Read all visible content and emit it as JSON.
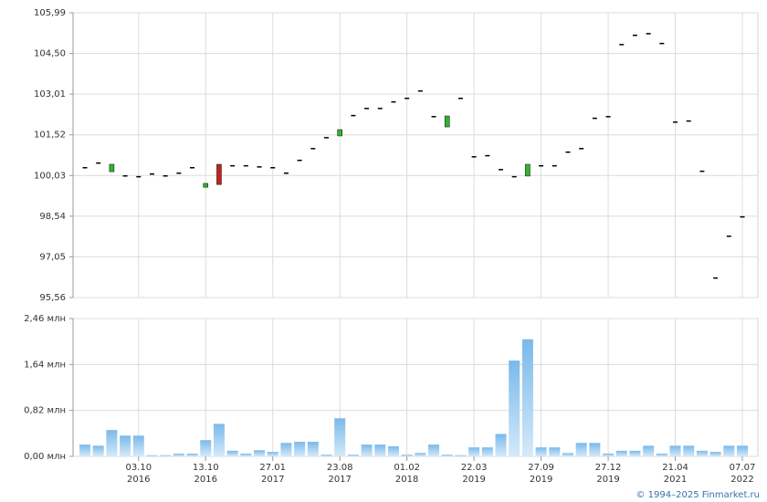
{
  "chart_data": [
    {
      "type": "candlestick",
      "up_color": "#2fb52f",
      "down_color": "#c81e1e",
      "flat_color": "#000000",
      "grid": true,
      "open": [
        100.34,
        100.51,
        100.17,
        100.04,
        100.01,
        100.11,
        100.04,
        100.14,
        100.34,
        99.6,
        100.44,
        100.41,
        100.41,
        100.37,
        100.34,
        100.14,
        100.61,
        101.04,
        101.44,
        101.48,
        102.25,
        102.51,
        102.51,
        102.75,
        102.88,
        103.15,
        102.21,
        101.81,
        102.88,
        100.74,
        100.78,
        100.27,
        100.01,
        100.01,
        100.41,
        100.41,
        100.91,
        101.04,
        102.15,
        102.21,
        104.85,
        105.19,
        105.25,
        104.89,
        102.01,
        102.05,
        100.21,
        96.3,
        97.83,
        98.54
      ],
      "close": [
        100.34,
        100.51,
        100.44,
        100.04,
        100.01,
        100.11,
        100.04,
        100.14,
        100.34,
        99.74,
        99.7,
        100.41,
        100.41,
        100.37,
        100.34,
        100.14,
        100.61,
        101.04,
        101.44,
        101.71,
        102.25,
        102.51,
        102.51,
        102.75,
        102.88,
        103.15,
        102.21,
        102.21,
        102.88,
        100.74,
        100.78,
        100.27,
        100.01,
        100.44,
        100.41,
        100.41,
        100.91,
        101.04,
        102.15,
        102.21,
        104.85,
        105.19,
        105.25,
        104.89,
        102.01,
        102.05,
        100.21,
        96.3,
        97.83,
        98.54
      ],
      "ylim": [
        95.56,
        105.99
      ],
      "yticks": [
        {
          "value": 95.56,
          "label": "95,56"
        },
        {
          "value": 97.05,
          "label": "97,05"
        },
        {
          "value": 98.54,
          "label": "98,54"
        },
        {
          "value": 100.03,
          "label": "100,03"
        },
        {
          "value": 101.52,
          "label": "101,52"
        },
        {
          "value": 103.01,
          "label": "103,01"
        },
        {
          "value": 104.5,
          "label": "104,50"
        },
        {
          "value": 105.99,
          "label": "105,99"
        }
      ]
    },
    {
      "type": "bar",
      "color": "#8cc8f0",
      "grid": true,
      "categories": [
        null,
        null,
        null,
        null,
        [
          "03.10",
          "2016"
        ],
        null,
        null,
        null,
        null,
        [
          "13.10",
          "2016"
        ],
        null,
        null,
        null,
        null,
        [
          "27.01",
          "2017"
        ],
        null,
        null,
        null,
        null,
        [
          "23.08",
          "2017"
        ],
        null,
        null,
        null,
        null,
        [
          "01.02",
          "2018"
        ],
        null,
        null,
        null,
        null,
        [
          "22.03",
          "2019"
        ],
        null,
        null,
        null,
        null,
        [
          "27.09",
          "2019"
        ],
        null,
        null,
        null,
        null,
        [
          "27.12",
          "2019"
        ],
        null,
        null,
        null,
        null,
        [
          "21.04",
          "2021"
        ],
        null,
        null,
        null,
        null,
        [
          "07.07",
          "2022"
        ]
      ],
      "values": [
        0.21,
        0.19,
        0.47,
        0.37,
        0.37,
        0.02,
        0.02,
        0.05,
        0.05,
        0.29,
        0.58,
        0.1,
        0.05,
        0.11,
        0.08,
        0.24,
        0.26,
        0.26,
        0.03,
        0.68,
        0.03,
        0.21,
        0.21,
        0.18,
        0.03,
        0.06,
        0.21,
        0.03,
        0.02,
        0.16,
        0.16,
        0.4,
        1.71,
        2.09,
        0.16,
        0.16,
        0.06,
        0.24,
        0.24,
        0.05,
        0.1,
        0.1,
        0.19,
        0.05,
        0.19,
        0.19,
        0.1,
        0.08,
        0.19,
        0.19
      ],
      "ylim": [
        0,
        2.46
      ],
      "yticks": [
        {
          "value": 0,
          "label": "0,00 млн"
        },
        {
          "value": 0.82,
          "label": "0,82 млн"
        },
        {
          "value": 1.64,
          "label": "1,64 млн"
        },
        {
          "value": 2.46,
          "label": "2,46 млн"
        }
      ]
    }
  ],
  "footer": "© 1994–2025 Finmarket.ru"
}
